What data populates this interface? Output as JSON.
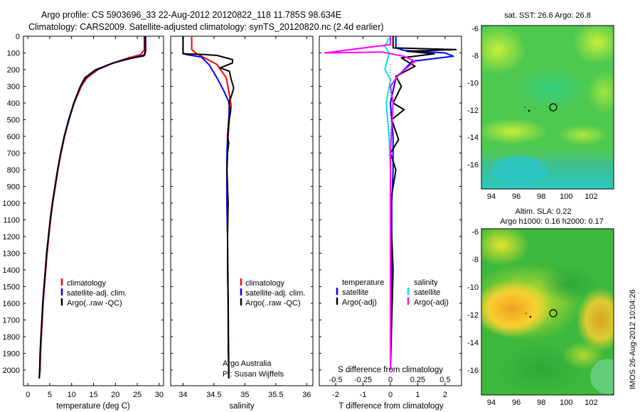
{
  "header": {
    "line1": "Argo profile: CS 5903696_33 22-Aug-2012 20120822_118 11.785S 98.634E",
    "line2": "Climatology: CARS2009. Satellite-adjusted climatology: synTS_20120820.nc (2.4d earlier)"
  },
  "side_label": "IMOS 26-Aug-2012 10:04:26",
  "colors": {
    "climatology": "#ff0000",
    "satellite": "#0000ff",
    "argo": "#000000",
    "salinity_satellite": "#00e5e5",
    "salinity_argo": "#ff00ff"
  },
  "chart_data": [
    {
      "type": "line",
      "id": "temperature",
      "xlabel": "temperature (deg C)",
      "ylabel": "",
      "xlim": [
        -1,
        31
      ],
      "ylim": [
        0,
        2060
      ],
      "xticks": [
        0,
        5,
        10,
        15,
        20,
        25,
        30
      ],
      "yticks": [
        0,
        100,
        200,
        300,
        400,
        500,
        600,
        700,
        800,
        900,
        1000,
        1100,
        1200,
        1300,
        1400,
        1500,
        1600,
        1700,
        1800,
        1900,
        2000
      ],
      "legend": [
        "climatology",
        "satellite-adj. clim.",
        "Argo(..raw -QC)"
      ],
      "series": [
        {
          "name": "climatology",
          "color": "climatology",
          "x": [
            26.6,
            26.6,
            25.8,
            23.0,
            19.5,
            16.0,
            13.5,
            12.2,
            10.6,
            9.4,
            8.4,
            7.6,
            6.9,
            6.3,
            5.7,
            5.2,
            4.8,
            4.4,
            4.1,
            3.8,
            3.5,
            3.3,
            3.1,
            2.9,
            2.8,
            2.6
          ],
          "y": [
            0,
            80,
            110,
            130,
            160,
            200,
            250,
            300,
            400,
            500,
            600,
            700,
            800,
            900,
            1000,
            1100,
            1200,
            1300,
            1400,
            1500,
            1600,
            1700,
            1800,
            1900,
            2000,
            2050
          ]
        },
        {
          "name": "satellite-adj. clim.",
          "color": "satellite",
          "x": [
            26.9,
            26.9,
            26.7,
            24.0,
            19.5,
            15.5,
            13.2,
            12.0,
            10.5,
            9.3,
            8.3,
            7.5,
            6.8,
            6.2,
            5.6,
            5.1,
            4.7,
            4.3,
            4.0,
            3.7,
            3.4,
            3.2,
            3.0,
            2.8,
            2.7,
            2.6
          ],
          "y": [
            0,
            90,
            112,
            130,
            160,
            200,
            250,
            300,
            400,
            500,
            600,
            700,
            800,
            900,
            1000,
            1100,
            1200,
            1300,
            1400,
            1500,
            1600,
            1700,
            1800,
            1900,
            2000,
            2050
          ]
        },
        {
          "name": "Argo(..raw -QC)",
          "color": "argo",
          "x": [
            26.8,
            26.8,
            26.5,
            22.0,
            18.5,
            15.0,
            13.0,
            12.0,
            10.5,
            9.4,
            8.3,
            7.5,
            6.8,
            6.2,
            5.6,
            5.1,
            4.7,
            4.3,
            4.0,
            3.7,
            3.4,
            3.2,
            3.0,
            2.8,
            2.7,
            2.6
          ],
          "y": [
            0,
            95,
            118,
            140,
            170,
            210,
            250,
            300,
            400,
            500,
            600,
            700,
            800,
            900,
            1000,
            1100,
            1200,
            1300,
            1400,
            1500,
            1600,
            1700,
            1800,
            1900,
            2000,
            2050
          ]
        }
      ]
    },
    {
      "type": "line",
      "id": "salinity",
      "xlabel": "salinity",
      "xlim": [
        33.8,
        36.1
      ],
      "ylim": [
        0,
        2060
      ],
      "xticks": [
        34,
        34.5,
        35,
        35.5,
        36
      ],
      "legend": [
        "climatology",
        "satellite-adj. clim.",
        "Argo(..raw -QC)"
      ],
      "annotation": [
        "Argo Australia",
        "PI: Susan Wijffels"
      ],
      "series": [
        {
          "name": "climatology",
          "color": "climatology",
          "x": [
            34.14,
            34.14,
            34.2,
            34.35,
            34.55,
            34.7,
            34.75,
            34.78,
            34.75,
            34.73,
            34.72,
            34.71,
            34.71,
            34.71,
            34.72,
            34.72,
            34.73,
            34.73,
            34.73,
            34.74,
            34.74
          ],
          "y": [
            0,
            80,
            100,
            130,
            170,
            250,
            350,
            420,
            500,
            600,
            700,
            800,
            900,
            1000,
            1200,
            1400,
            1600,
            1800,
            1900,
            2000,
            2050
          ]
        },
        {
          "name": "satellite-adj. clim.",
          "color": "satellite",
          "x": [
            34.0,
            34.0,
            34.05,
            34.3,
            34.42,
            34.55,
            34.65,
            34.75,
            34.74,
            34.72,
            34.71,
            34.71,
            34.71,
            34.72,
            34.72,
            34.73,
            34.73,
            34.74,
            34.74
          ],
          "y": [
            0,
            100,
            110,
            125,
            170,
            250,
            320,
            400,
            500,
            600,
            700,
            800,
            1000,
            1200,
            1400,
            1600,
            1800,
            2000,
            2050
          ]
        },
        {
          "name": "Argo(..raw -QC)",
          "color": "argo",
          "x": [
            34.0,
            34.0,
            34.35,
            34.55,
            34.8,
            34.8,
            34.6,
            34.75,
            34.78,
            34.82,
            34.78,
            34.74,
            34.77,
            34.74,
            34.72,
            34.74,
            34.72,
            34.71,
            34.73,
            34.72,
            34.73,
            34.74,
            34.74
          ],
          "y": [
            0,
            105,
            110,
            115,
            140,
            160,
            190,
            210,
            260,
            310,
            360,
            400,
            450,
            500,
            600,
            640,
            700,
            800,
            1000,
            1200,
            1600,
            2000,
            2050
          ]
        }
      ]
    },
    {
      "type": "line",
      "id": "difference",
      "xlabel": "T difference from climatology",
      "xlabel_top": "S difference from climatology",
      "xlim": [
        -2.6,
        2.6
      ],
      "ylim": [
        0,
        2060
      ],
      "xticks": [
        -2,
        -1,
        0,
        1,
        2
      ],
      "xticks_s": [
        -0.5,
        -0.25,
        0,
        0.25,
        0.5
      ],
      "legend_t": [
        "temperature",
        "satellite",
        "Argo(-adj)"
      ],
      "legend_s": [
        "salinity",
        "satellite",
        "Argo(-adj)"
      ],
      "series": [
        {
          "name": "satellite",
          "color": "satellite",
          "x": [
            0.2,
            0.2,
            0.5,
            2.0,
            2.3,
            0.8,
            0.2,
            0.0,
            0.1,
            0.1,
            0.05,
            0.05,
            0.0,
            0.0
          ],
          "y": [
            0,
            70,
            85,
            100,
            120,
            150,
            250,
            400,
            600,
            800,
            1000,
            1400,
            1800,
            2000
          ]
        },
        {
          "name": "Argo(-adj)",
          "color": "argo",
          "x": [
            0.1,
            0.1,
            2.4,
            0.6,
            1.6,
            0.4,
            0.9,
            0.2,
            0.4,
            0.1,
            0.5,
            0.05,
            0.3,
            0.0,
            0.2,
            0.0,
            0.1,
            0.0
          ],
          "y": [
            0,
            70,
            80,
            90,
            105,
            130,
            180,
            240,
            300,
            400,
            440,
            500,
            620,
            700,
            800,
            1000,
            1400,
            2000
          ]
        },
        {
          "name": "salinity satellite",
          "color": "salinity_satellite",
          "x": [
            0.0,
            -0.2,
            -0.05,
            -0.2,
            0.0,
            -0.15,
            -0.05,
            0.0,
            0.0,
            0.0
          ],
          "y": [
            0,
            60,
            100,
            200,
            260,
            400,
            600,
            800,
            1200,
            2000
          ]
        },
        {
          "name": "salinity Argo(-adj)",
          "color": "salinity_argo",
          "x": [
            0.0,
            0.0,
            -2.4,
            -0.3,
            0.5,
            0.9,
            0.3,
            0.0,
            0.1,
            0.0,
            0.0
          ],
          "y": [
            0,
            50,
            100,
            95,
            120,
            150,
            230,
            300,
            400,
            700,
            2000
          ]
        }
      ]
    },
    {
      "type": "heatmap",
      "id": "sst_map",
      "title": "sat. SST: 26.6 Argo: 26.8",
      "xlim": [
        93.2,
        103.8
      ],
      "ylim": [
        -17.8,
        -5.8
      ],
      "xticks": [
        94,
        96,
        98,
        100,
        102
      ],
      "yticks": [
        -6,
        -8,
        -10,
        -12,
        -14,
        -16
      ],
      "marker": {
        "lon": 98.634,
        "lat": -11.785
      }
    },
    {
      "type": "heatmap",
      "id": "sla_map",
      "title": "Altim. SLA: 0.22",
      "subtitle": "Argo h1000: 0.16 h2000: 0.17",
      "xlim": [
        93.2,
        103.8
      ],
      "ylim": [
        -17.8,
        -5.8
      ],
      "xticks": [
        94,
        96,
        98,
        100,
        102
      ],
      "yticks": [
        -6,
        -8,
        -10,
        -12,
        -14,
        -16
      ],
      "marker": {
        "lon": 98.634,
        "lat": -11.785
      }
    }
  ]
}
